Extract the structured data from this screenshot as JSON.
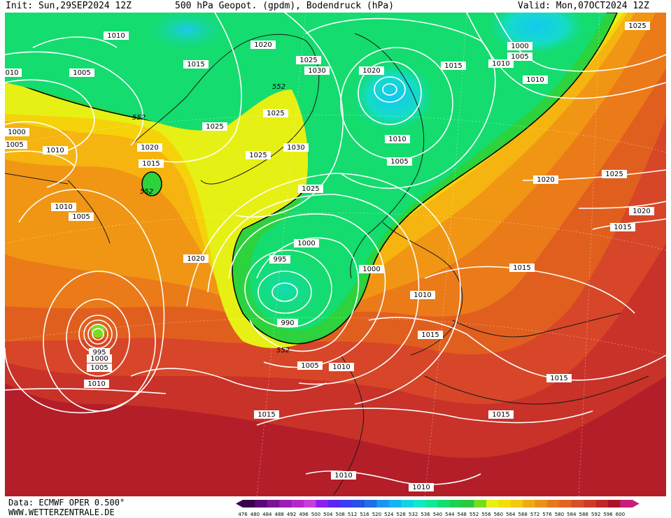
{
  "header": {
    "init": "Init: Sun,29SEP2024 12Z",
    "title": "500 hPa Geopot. (gpdm), Bodendruck (hPa)",
    "valid": "Valid: Mon,07OCT2024 12Z"
  },
  "footer": {
    "data_source": "Data: ECMWF OPER 0.500°",
    "website": "WWW.WETTERZENTRALE.DE"
  },
  "colorbar": {
    "ticks": [
      "476",
      "480",
      "484",
      "488",
      "492",
      "496",
      "500",
      "504",
      "508",
      "512",
      "516",
      "520",
      "524",
      "528",
      "532",
      "536",
      "540",
      "544",
      "548",
      "552",
      "556",
      "560",
      "564",
      "568",
      "572",
      "576",
      "580",
      "584",
      "588",
      "592",
      "596",
      "600"
    ],
    "colors": [
      "#3a0050",
      "#5a0a78",
      "#7a1496",
      "#9a1eb4",
      "#b428c8",
      "#c83cdc",
      "#8c1ef0",
      "#5a28f0",
      "#3c3cf0",
      "#2850e6",
      "#1e6ee6",
      "#1e96f0",
      "#14b4f0",
      "#14d2e6",
      "#14e6c8",
      "#14e696",
      "#14dc6e",
      "#1ed250",
      "#2dc83c",
      "#78dc1e",
      "#e6f014",
      "#f5dc0a",
      "#f5c814",
      "#f0aa14",
      "#eb9119",
      "#e6781e",
      "#e16423",
      "#d75028",
      "#cd3c28",
      "#be2828",
      "#aa1428",
      "#c81e78"
    ]
  },
  "map": {
    "isobars": [
      {
        "label": "1010"
      },
      {
        "label": "1020"
      },
      {
        "label": "1015"
      },
      {
        "label": "1025"
      },
      {
        "label": "1030"
      },
      {
        "label": "1020"
      },
      {
        "label": "1015"
      },
      {
        "label": "1010"
      },
      {
        "label": "1000"
      },
      {
        "label": "1005"
      },
      {
        "label": "1010"
      },
      {
        "label": "1025"
      },
      {
        "label": "010"
      },
      {
        "label": "1005"
      },
      {
        "label": "1000"
      },
      {
        "label": "1005"
      },
      {
        "label": "1010"
      },
      {
        "label": "1025"
      },
      {
        "label": "1025"
      },
      {
        "label": "1025"
      },
      {
        "label": "1030"
      },
      {
        "label": "1020"
      },
      {
        "label": "1015"
      },
      {
        "label": "1010"
      },
      {
        "label": "1005"
      },
      {
        "label": "1025"
      },
      {
        "label": "1020"
      },
      {
        "label": "1025"
      },
      {
        "label": "1020"
      },
      {
        "label": "1015"
      },
      {
        "label": "1010"
      },
      {
        "label": "1005"
      },
      {
        "label": "1000"
      },
      {
        "label": "995"
      },
      {
        "label": "990"
      },
      {
        "label": "1000"
      },
      {
        "label": "1010"
      },
      {
        "label": "1015"
      },
      {
        "label": "1015"
      },
      {
        "label": "1020"
      },
      {
        "label": "995"
      },
      {
        "label": "1000"
      },
      {
        "label": "1005"
      },
      {
        "label": "1010"
      },
      {
        "label": "1005"
      },
      {
        "label": "1010"
      },
      {
        "label": "1015"
      },
      {
        "label": "1015"
      },
      {
        "label": "1015"
      },
      {
        "label": "1010"
      },
      {
        "label": "1010"
      }
    ],
    "height_labels": [
      {
        "label": "552"
      },
      {
        "label": "552"
      },
      {
        "label": "552"
      },
      {
        "label": "552"
      }
    ]
  }
}
